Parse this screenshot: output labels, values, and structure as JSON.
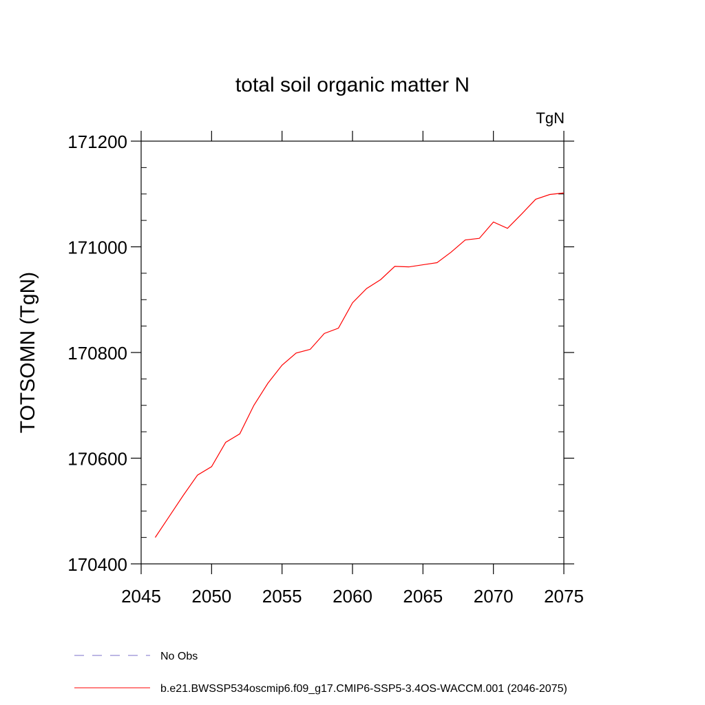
{
  "chart_data": {
    "type": "line",
    "title": "total soil organic matter N",
    "units": "TgN",
    "ylabel": "TOTSOMN  (TgN)",
    "xlabel": "",
    "xlim": [
      2045,
      2075
    ],
    "ylim": [
      170400,
      171200
    ],
    "xticks": [
      2045,
      2050,
      2055,
      2060,
      2065,
      2070,
      2075
    ],
    "yticks": [
      170400,
      170600,
      170800,
      171000,
      171200
    ],
    "grid": false,
    "legend_position": "bottom",
    "series": [
      {
        "name": "b.e21.BWSSP534oscmip6.f09_g17.CMIP6-SSP5-3.4OS-WACCM.001 (2046-2075)",
        "color": "#ff0000",
        "dash": "solid",
        "x": [
          2046,
          2047,
          2048,
          2049,
          2050,
          2051,
          2052,
          2053,
          2054,
          2055,
          2056,
          2057,
          2058,
          2059,
          2060,
          2061,
          2062,
          2063,
          2064,
          2065,
          2066,
          2067,
          2068,
          2069,
          2070,
          2071,
          2072,
          2073,
          2074,
          2075
        ],
        "values": [
          170450,
          170490,
          170530,
          170568,
          170584,
          170630,
          170646,
          170700,
          170742,
          170776,
          170799,
          170806,
          170836,
          170846,
          170894,
          170921,
          170938,
          170963,
          170962,
          170966,
          170970,
          170990,
          171013,
          171016,
          171047,
          171035,
          171062,
          171090,
          171099,
          171102
        ]
      }
    ],
    "legend": [
      {
        "label": "No Obs",
        "color": "#7b6fc9",
        "dash": "dashed"
      },
      {
        "label": "b.e21.BWSSP534oscmip6.f09_g17.CMIP6-SSP5-3.4OS-WACCM.001 (2046-2075)",
        "color": "#ff0000",
        "dash": "solid"
      }
    ]
  }
}
